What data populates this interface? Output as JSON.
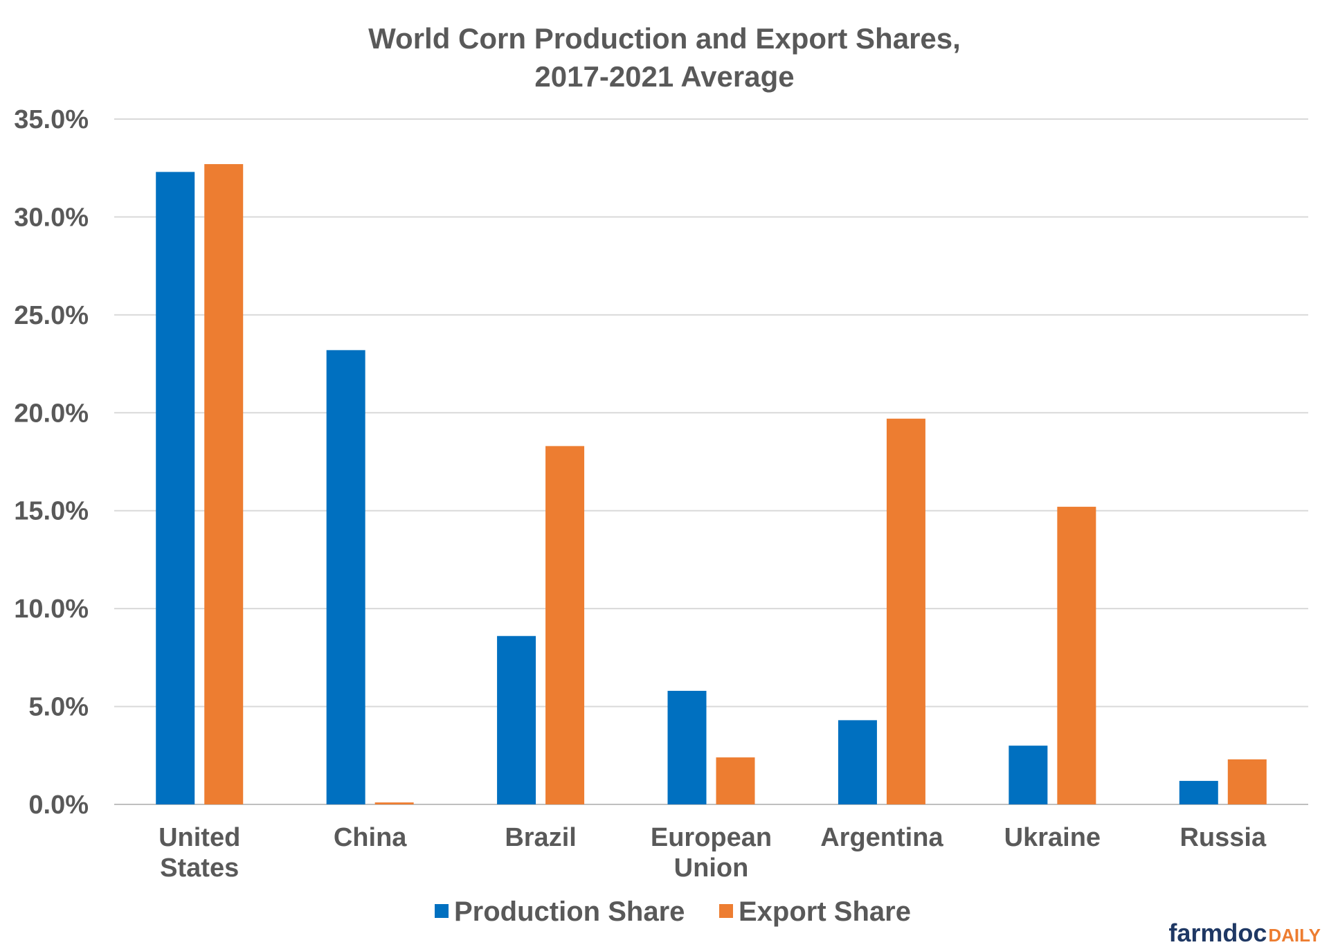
{
  "chart_data": {
    "type": "bar",
    "title_lines": [
      "World Corn Production and Export Shares,",
      "2017-2021 Average"
    ],
    "categories": [
      [
        "United",
        "States"
      ],
      [
        "China"
      ],
      [
        "Brazil"
      ],
      [
        "European",
        "Union"
      ],
      [
        "Argentina"
      ],
      [
        "Ukraine"
      ],
      [
        "Russia"
      ]
    ],
    "series": [
      {
        "name": "Production Share",
        "color": "#0070c0",
        "values": [
          32.3,
          23.2,
          8.6,
          5.8,
          4.3,
          3.0,
          1.2
        ]
      },
      {
        "name": "Export Share",
        "color": "#ed7d31",
        "values": [
          32.7,
          0.1,
          18.3,
          2.4,
          19.7,
          15.2,
          2.3
        ]
      }
    ],
    "yticks": [
      "0.0%",
      "5.0%",
      "10.0%",
      "15.0%",
      "20.0%",
      "25.0%",
      "30.0%",
      "35.0%"
    ],
    "ylim": [
      0,
      35
    ],
    "grid": true,
    "legend_position": "bottom"
  },
  "logo": {
    "main": "farmdoc",
    "accent": "DAILY"
  }
}
